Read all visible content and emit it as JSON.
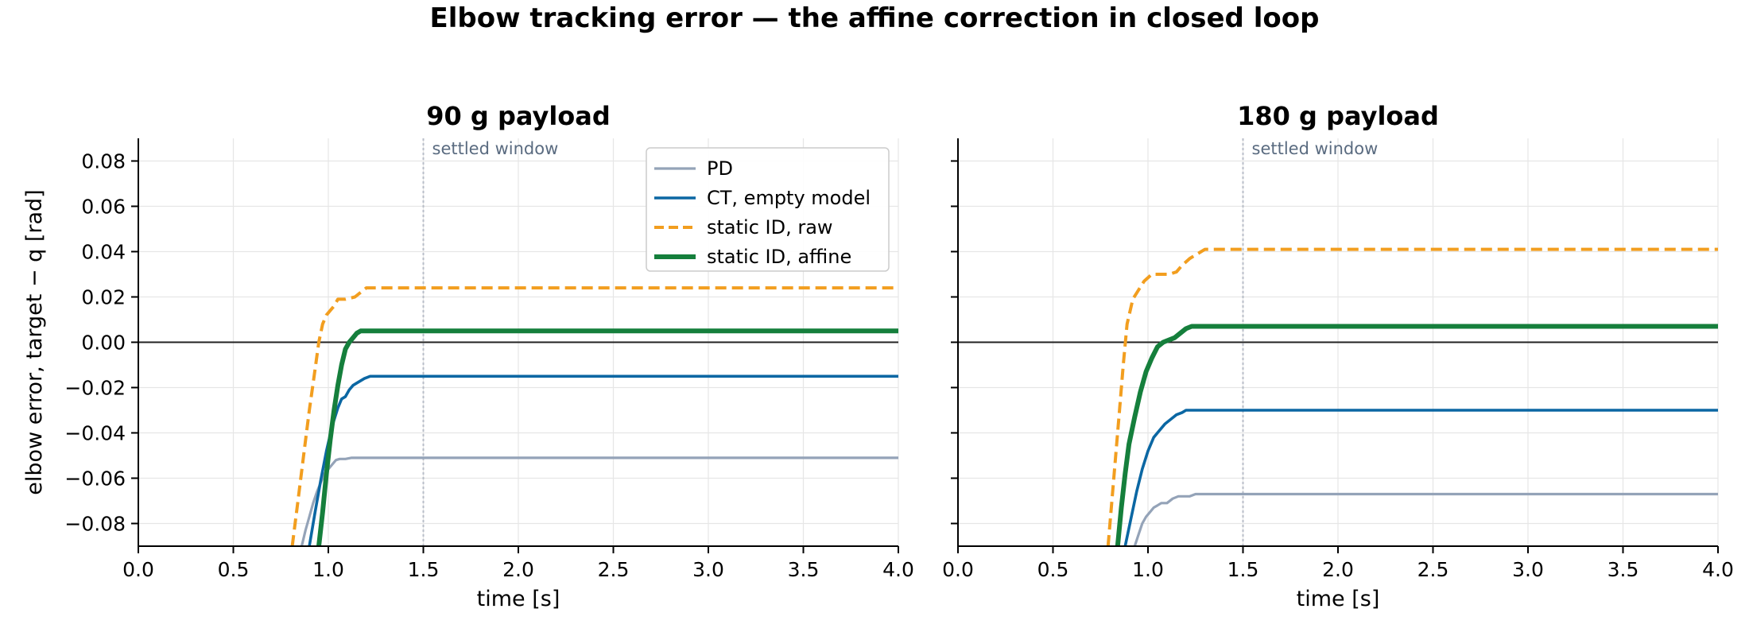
{
  "figure": {
    "title": "Elbow tracking error — the affine correction in closed loop"
  },
  "colors": {
    "PD": "#94a3b8",
    "CT": "#0b67a3",
    "raw": "#f29e1f",
    "affine": "#157f3c",
    "zero_line": "#222222",
    "marker_line": "#b8bec8",
    "annotation": "#5a6b80",
    "grid": "#e6e6e6"
  },
  "chart_data": [
    {
      "type": "line",
      "title": "90 g payload",
      "xlabel": "time [s]",
      "ylabel": "elbow error, target − q  [rad]",
      "xlim": [
        0.0,
        4.0
      ],
      "ylim": [
        -0.09,
        0.09
      ],
      "xticks": [
        0.0,
        0.5,
        1.0,
        1.5,
        2.0,
        2.5,
        3.0,
        3.5,
        4.0
      ],
      "xtick_labels": [
        "0.0",
        "0.5",
        "1.0",
        "1.5",
        "2.0",
        "2.5",
        "3.0",
        "3.5",
        "4.0"
      ],
      "yticks": [
        -0.08,
        -0.06,
        -0.04,
        -0.02,
        0.0,
        0.02,
        0.04,
        0.06,
        0.08
      ],
      "ytick_labels": [
        "−0.08",
        "−0.06",
        "−0.04",
        "−0.02",
        "0.00",
        "0.02",
        "0.04",
        "0.06",
        "0.08"
      ],
      "grid": true,
      "vline": {
        "x": 1.5,
        "label": "settled window"
      },
      "hline": 0.0,
      "legend": {
        "placement": "upper-right"
      },
      "series": [
        {
          "name": "PD",
          "style": "solid",
          "color_key": "PD",
          "x": [
            0.86,
            0.88,
            0.9,
            0.92,
            0.94,
            0.96,
            0.98,
            1.0,
            1.02,
            1.04,
            1.06,
            1.09,
            1.12,
            1.14,
            4.0
          ],
          "y": [
            -0.09,
            -0.083,
            -0.077,
            -0.071,
            -0.066,
            -0.062,
            -0.058,
            -0.056,
            -0.054,
            -0.052,
            -0.0515,
            -0.0515,
            -0.051,
            -0.051,
            -0.051
          ]
        },
        {
          "name": "CT, empty model",
          "style": "solid",
          "color_key": "CT",
          "x": [
            0.9,
            0.93,
            0.96,
            0.99,
            1.02,
            1.05,
            1.07,
            1.09,
            1.11,
            1.13,
            1.15,
            1.17,
            1.19,
            1.22,
            4.0
          ],
          "y": [
            -0.09,
            -0.075,
            -0.061,
            -0.048,
            -0.037,
            -0.029,
            -0.025,
            -0.024,
            -0.021,
            -0.019,
            -0.018,
            -0.017,
            -0.016,
            -0.015,
            -0.015
          ]
        },
        {
          "name": "static ID, raw",
          "style": "dashed",
          "color_key": "raw",
          "x": [
            0.81,
            0.84,
            0.87,
            0.9,
            0.93,
            0.95,
            0.97,
            0.99,
            1.01,
            1.03,
            1.05,
            1.09,
            1.14,
            1.17,
            1.2,
            4.0
          ],
          "y": [
            -0.09,
            -0.07,
            -0.05,
            -0.03,
            -0.012,
            0.0,
            0.008,
            0.012,
            0.014,
            0.016,
            0.019,
            0.019,
            0.02,
            0.022,
            0.024,
            0.024
          ]
        },
        {
          "name": "static ID, affine",
          "style": "solid",
          "color_key": "affine",
          "x": [
            0.95,
            0.97,
            0.99,
            1.01,
            1.03,
            1.05,
            1.07,
            1.09,
            1.11,
            1.13,
            1.15,
            1.17,
            1.19,
            4.0
          ],
          "y": [
            -0.09,
            -0.075,
            -0.058,
            -0.043,
            -0.03,
            -0.019,
            -0.01,
            -0.003,
            0.0,
            0.002,
            0.004,
            0.005,
            0.005,
            0.005
          ]
        }
      ]
    },
    {
      "type": "line",
      "title": "180 g payload",
      "xlabel": "time [s]",
      "ylabel": "",
      "xlim": [
        0.0,
        4.0
      ],
      "ylim": [
        -0.09,
        0.09
      ],
      "xticks": [
        0.0,
        0.5,
        1.0,
        1.5,
        2.0,
        2.5,
        3.0,
        3.5,
        4.0
      ],
      "xtick_labels": [
        "0.0",
        "0.5",
        "1.0",
        "1.5",
        "2.0",
        "2.5",
        "3.0",
        "3.5",
        "4.0"
      ],
      "yticks": [
        -0.08,
        -0.06,
        -0.04,
        -0.02,
        0.0,
        0.02,
        0.04,
        0.06,
        0.08
      ],
      "ytick_labels": [],
      "grid": true,
      "vline": {
        "x": 1.5,
        "label": "settled window"
      },
      "hline": 0.0,
      "legend": null,
      "series": [
        {
          "name": "PD",
          "style": "solid",
          "color_key": "PD",
          "x": [
            0.93,
            0.95,
            0.97,
            0.99,
            1.01,
            1.03,
            1.05,
            1.07,
            1.1,
            1.13,
            1.16,
            1.19,
            1.22,
            1.25,
            4.0
          ],
          "y": [
            -0.09,
            -0.085,
            -0.08,
            -0.077,
            -0.075,
            -0.073,
            -0.072,
            -0.071,
            -0.071,
            -0.069,
            -0.068,
            -0.068,
            -0.068,
            -0.067,
            -0.067
          ]
        },
        {
          "name": "CT, empty model",
          "style": "solid",
          "color_key": "CT",
          "x": [
            0.88,
            0.91,
            0.94,
            0.97,
            1.0,
            1.03,
            1.06,
            1.09,
            1.12,
            1.15,
            1.18,
            1.2,
            4.0
          ],
          "y": [
            -0.09,
            -0.078,
            -0.066,
            -0.056,
            -0.048,
            -0.042,
            -0.039,
            -0.036,
            -0.034,
            -0.032,
            -0.031,
            -0.03,
            -0.03
          ]
        },
        {
          "name": "static ID, raw",
          "style": "dashed",
          "color_key": "raw",
          "x": [
            0.79,
            0.81,
            0.83,
            0.85,
            0.87,
            0.89,
            0.92,
            0.95,
            0.98,
            1.02,
            1.06,
            1.11,
            1.15,
            1.18,
            1.22,
            1.26,
            1.3,
            4.0
          ],
          "y": [
            -0.09,
            -0.07,
            -0.05,
            -0.03,
            -0.01,
            0.008,
            0.019,
            0.023,
            0.027,
            0.03,
            0.03,
            0.03,
            0.031,
            0.034,
            0.037,
            0.039,
            0.041,
            0.041
          ]
        },
        {
          "name": "static ID, affine",
          "style": "solid",
          "color_key": "affine",
          "x": [
            0.84,
            0.86,
            0.88,
            0.9,
            0.93,
            0.96,
            0.99,
            1.02,
            1.05,
            1.08,
            1.11,
            1.14,
            1.17,
            1.2,
            1.23,
            4.0
          ],
          "y": [
            -0.09,
            -0.073,
            -0.058,
            -0.045,
            -0.033,
            -0.022,
            -0.013,
            -0.007,
            -0.002,
            0.0,
            0.001,
            0.002,
            0.004,
            0.006,
            0.007,
            0.007
          ]
        }
      ]
    }
  ]
}
